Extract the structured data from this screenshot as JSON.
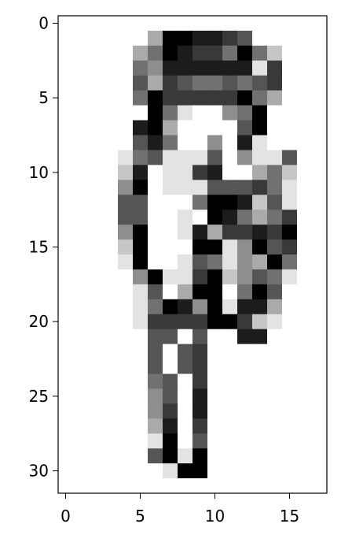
{
  "chart_data": {
    "type": "heatmap",
    "colormap": "gray_r",
    "value_range": [
      0,
      1
    ],
    "n_cols": 17,
    "n_rows": 32,
    "xlim": [
      -0.5,
      17.5
    ],
    "ylim": [
      31.5,
      -0.5
    ],
    "xticks": [
      0,
      5,
      10,
      15
    ],
    "yticks": [
      0,
      5,
      10,
      15,
      20,
      25,
      30
    ],
    "xtick_labels": [
      "0",
      "5",
      "10",
      "15"
    ],
    "ytick_labels": [
      "0",
      "5",
      "10",
      "15",
      "20",
      "25",
      "30"
    ],
    "rows": [
      "00000000000000000",
      "00000039988760000",
      "00000359877595200",
      "00000548888881700",
      "00000637655656700",
      "00000597777795300",
      "00000095100459000",
      "00000893000069000",
      "00000685004081000",
      "00001561116041160",
      "00002801178003520",
      "00004901116667510",
      "00006600059982610",
      "00006600109853570",
      "00004900183778790",
      "00002900099149670",
      "00001900165143950",
      "00000491179246510",
      "00000160399059600",
      "00000159849188300",
      "00000177779972100",
      "00000066060088000",
      "00000060670000000",
      "00000060670000000",
      "00000056070000000",
      "00000046080000000",
      "00000047080000000",
      "00000038070000000",
      "00000019060000000",
      "00000069190000000",
      "00000001990000000",
      "00000000000000000"
    ]
  }
}
